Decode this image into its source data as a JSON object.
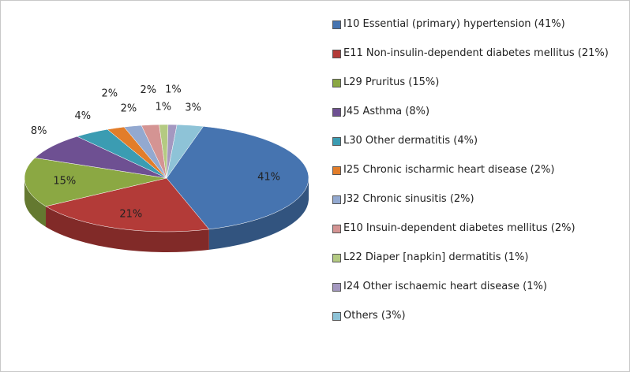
{
  "chart_data": {
    "type": "pie",
    "categories": [
      "I10 Essential (primary) hypertension  (41%)",
      "E11 Non-insulin-dependent diabetes mellitus (21%)",
      "L29 Pruritus (15%)",
      "J45 Asthma (8%)",
      "L30 Other dermatitis (4%)",
      "I25 Chronic ischarmic heart disease (2%)",
      "J32 Chronic sinusitis (2%)",
      "E10 Insuin-dependent diabetes mellitus (2%)",
      "L22 Diaper [napkin] dermatitis (1%)",
      "I24 Other ischaemic heart disease (1%)",
      "Others (3%)"
    ],
    "values": [
      41,
      21,
      15,
      8,
      4,
      2,
      2,
      2,
      1,
      1,
      3
    ],
    "value_labels": [
      "41%",
      "21%",
      "15%",
      "8%",
      "4%",
      "2%",
      "2%",
      "2%",
      "1%",
      "1%",
      "3%"
    ],
    "colors": [
      "#4674b0",
      "#b33b38",
      "#8ba843",
      "#6e5092",
      "#3b9cb2",
      "#e27d2a",
      "#93a9d0",
      "#d49493",
      "#b4ca82",
      "#a498c0",
      "#8ec3d7"
    ],
    "legend": "right"
  }
}
